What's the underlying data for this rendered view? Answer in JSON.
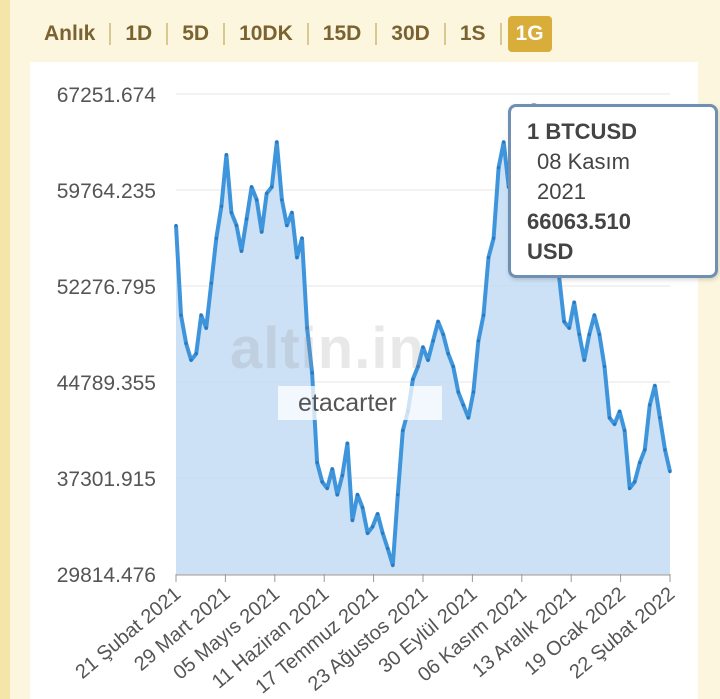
{
  "tabs": [
    {
      "label": "Anlık",
      "active": false
    },
    {
      "label": "1D",
      "active": false
    },
    {
      "label": "5D",
      "active": false
    },
    {
      "label": "10DK",
      "active": false
    },
    {
      "label": "15D",
      "active": false
    },
    {
      "label": "30D",
      "active": false
    },
    {
      "label": "1S",
      "active": false
    },
    {
      "label": "1G",
      "active": true
    }
  ],
  "watermark": {
    "brand": "altin.in",
    "user": "etacarter"
  },
  "tooltip": {
    "symbol": "1 BTCUSD",
    "date_line1": "08 Kasım",
    "date_line2": "2021",
    "value": "66063.510",
    "unit": "USD"
  },
  "colors": {
    "line": "#3f95db",
    "area": "#c3dcf3",
    "grid": "#e4e4e4",
    "accent": "#d9ad3a"
  },
  "chart_data": {
    "type": "area",
    "title": "",
    "xlabel": "",
    "ylabel": "",
    "ylim": [
      29814.476,
      67251.674
    ],
    "yticks": [
      "67251.674",
      "59764.235",
      "52276.795",
      "44789.355",
      "37301.915",
      "29814.476"
    ],
    "xticks": [
      "21 Şubat 2021",
      "29 Mart 2021",
      "05 Mayıs 2021",
      "11 Haziran 2021",
      "17 Temmuz 2021",
      "23 Ağustos 2021",
      "30 Eylül 2021",
      "06 Kasım 2021",
      "13 Aralık 2021",
      "19 Ocak 2022",
      "22 Şubat 2022"
    ],
    "grid": true,
    "series": [
      {
        "values": [
          57000,
          50000,
          47800,
          46500,
          47000,
          50000,
          49000,
          52500,
          56000,
          58500,
          62500,
          58000,
          57000,
          55000,
          57500,
          60000,
          59000,
          56500,
          59500,
          60000,
          63500,
          59000,
          57000,
          58000,
          54500,
          56000,
          49000,
          45500,
          38500,
          37000,
          36500,
          38000,
          36000,
          37500,
          40000,
          34000,
          36000,
          35000,
          33000,
          33500,
          34500,
          33000,
          31800,
          30500,
          36000,
          41000,
          42500,
          45000,
          46000,
          47500,
          46500,
          48000,
          49500,
          48500,
          47000,
          46000,
          44000,
          43000,
          42000,
          44000,
          48000,
          50000,
          54500,
          56000,
          61500,
          63500,
          60000,
          64000,
          66000,
          63000,
          64500,
          66063,
          62000,
          58500,
          56000,
          57500,
          53000,
          49500,
          49000,
          51000,
          48500,
          46500,
          48500,
          50000,
          48500,
          46000,
          42000,
          41500,
          42500,
          41000,
          36500,
          37000,
          38500,
          39500,
          43000,
          44500,
          42000,
          39500,
          37800
        ]
      }
    ]
  }
}
